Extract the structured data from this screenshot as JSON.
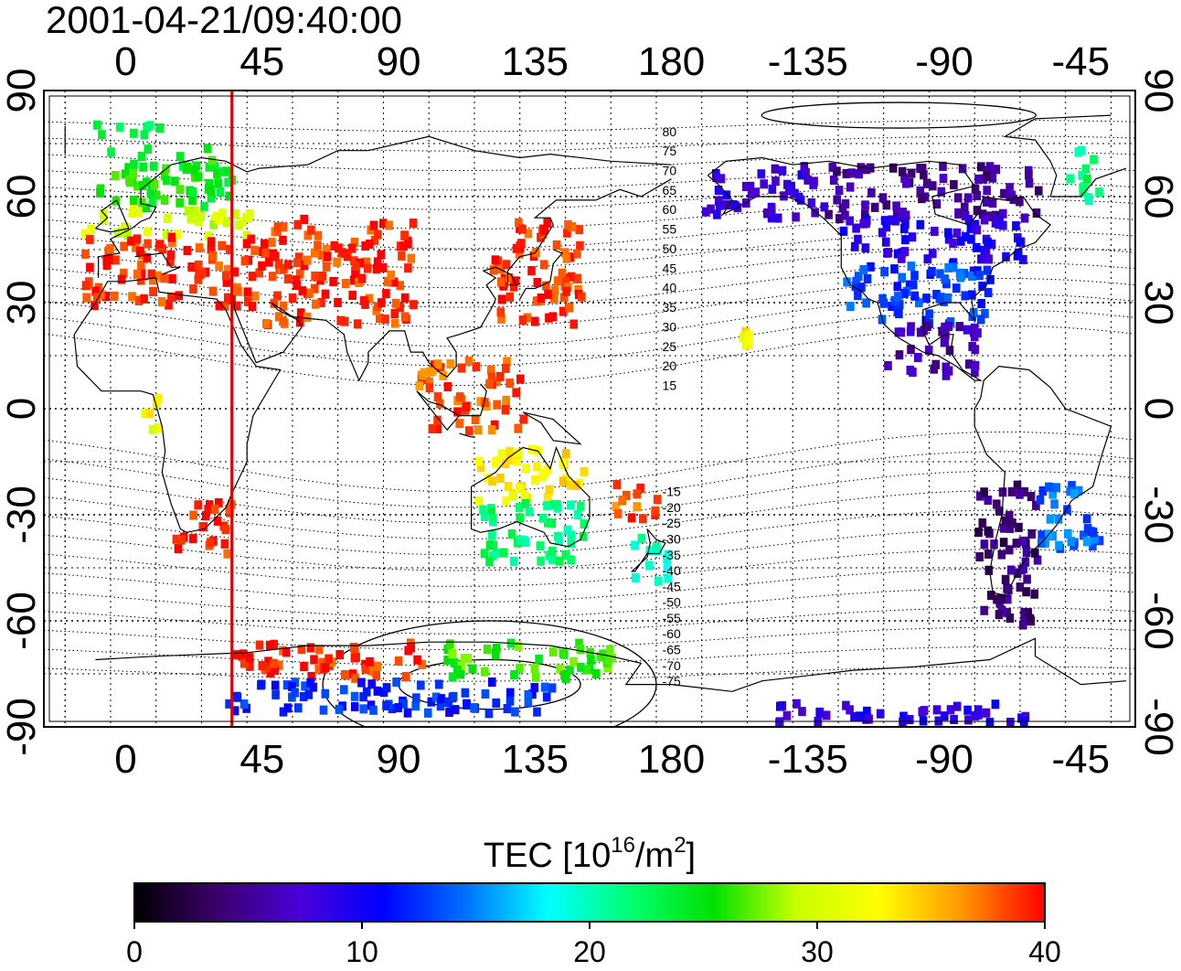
{
  "timestamp": "2001-04-21/09:40:00",
  "map": {
    "top_lon_ticks": [
      "0",
      "45",
      "90",
      "135",
      "180",
      "-135",
      "-90",
      "-45"
    ],
    "bottom_lon_ticks": [
      "0",
      "45",
      "90",
      "135",
      "180",
      "-135",
      "-90",
      "-45"
    ],
    "left_lat_ticks": [
      "90",
      "60",
      "30",
      "0",
      "-30",
      "-60",
      "-90"
    ],
    "right_lat_ticks": [
      "90",
      "60",
      "30",
      "0",
      "-30",
      "-60",
      "-90"
    ],
    "terminator_longitude": 35,
    "terminator_color": "#e00000",
    "north_contour_labels": [
      "80",
      "75",
      "70",
      "65",
      "60",
      "55",
      "50",
      "45",
      "40",
      "35",
      "30",
      "25",
      "20",
      "15"
    ],
    "south_contour_labels": [
      "-15",
      "-20",
      "-25",
      "-30",
      "-35",
      "-40",
      "-45",
      "-50",
      "-55",
      "-60",
      "-65",
      "-70",
      "-75"
    ]
  },
  "colorbar": {
    "title_main": "TEC  [10",
    "title_exp1": "16",
    "title_mid": "/m",
    "title_exp2": "2",
    "title_end": "]",
    "min": 0,
    "max": 40,
    "tick_labels": [
      "0",
      "10",
      "20",
      "30",
      "40"
    ],
    "stops": [
      "#000000",
      "#3c006c",
      "#4a00d8",
      "#0000ff",
      "#0070ff",
      "#00ffff",
      "#00ff70",
      "#00e000",
      "#c8ff00",
      "#ffff00",
      "#ff9600",
      "#ff0000"
    ]
  },
  "tec_regions": [
    {
      "name": "europe-high-north",
      "lon": [
        -15,
        10
      ],
      "lat": [
        78,
        82
      ],
      "tec": 23
    },
    {
      "name": "europe-northern",
      "lon": [
        -10,
        35
      ],
      "lat": [
        58,
        75
      ],
      "tec": 25
    },
    {
      "name": "europe-mid",
      "lon": [
        -15,
        40
      ],
      "lat": [
        50,
        58
      ],
      "tec": 30
    },
    {
      "name": "europe-south",
      "lon": [
        -15,
        45
      ],
      "lat": [
        30,
        50
      ],
      "tec": 39
    },
    {
      "name": "middle-east",
      "lon": [
        45,
        95
      ],
      "lat": [
        25,
        55
      ],
      "tec": 39
    },
    {
      "name": "east-asia",
      "lon": [
        120,
        150
      ],
      "lat": [
        25,
        55
      ],
      "tec": 39
    },
    {
      "name": "indonesia",
      "lon": [
        95,
        130
      ],
      "lat": [
        -5,
        15
      ],
      "tec": 38
    },
    {
      "name": "australia-north",
      "lon": [
        115,
        150
      ],
      "lat": [
        -25,
        -10
      ],
      "tec": 33
    },
    {
      "name": "australia-south",
      "lon": [
        115,
        150
      ],
      "lat": [
        -42,
        -25
      ],
      "tec": 22
    },
    {
      "name": "new-zealand",
      "lon": [
        165,
        178
      ],
      "lat": [
        -48,
        -35
      ],
      "tec": 20
    },
    {
      "name": "pacific-islands",
      "lon": [
        160,
        175
      ],
      "lat": [
        -30,
        -20
      ],
      "tec": 38
    },
    {
      "name": "hawaii",
      "lon": [
        -158,
        -154
      ],
      "lat": [
        18,
        25
      ],
      "tec": 33
    },
    {
      "name": "south-africa",
      "lon": [
        15,
        35
      ],
      "lat": [
        -40,
        -25
      ],
      "tec": 39
    },
    {
      "name": "west-africa",
      "lon": [
        5,
        10
      ],
      "lat": [
        -5,
        5
      ],
      "tec": 32
    },
    {
      "name": "alaska-canada-west",
      "lon": [
        -170,
        -130
      ],
      "lat": [
        55,
        70
      ],
      "tec": 8
    },
    {
      "name": "canada-east",
      "lon": [
        -130,
        -60
      ],
      "lat": [
        55,
        70
      ],
      "tec": 5
    },
    {
      "name": "usa-north",
      "lon": [
        -125,
        -65
      ],
      "lat": [
        42,
        55
      ],
      "tec": 9
    },
    {
      "name": "usa-south",
      "lon": [
        -125,
        -75
      ],
      "lat": [
        25,
        42
      ],
      "tec": 13
    },
    {
      "name": "mexico-caribbean",
      "lon": [
        -110,
        -80
      ],
      "lat": [
        10,
        25
      ],
      "tec": 6
    },
    {
      "name": "greenland-east",
      "lon": [
        -50,
        -40
      ],
      "lat": [
        60,
        75
      ],
      "tec": 22
    },
    {
      "name": "south-america-west",
      "lon": [
        -80,
        -60
      ],
      "lat": [
        -60,
        -20
      ],
      "tec": 4
    },
    {
      "name": "south-america-east",
      "lon": [
        -60,
        -40
      ],
      "lat": [
        -40,
        -20
      ],
      "tec": 14
    },
    {
      "name": "antarctic-coast-east",
      "lon": [
        35,
        100
      ],
      "lat": [
        -75,
        -65
      ],
      "tec": 39
    },
    {
      "name": "antarctic-coast-mid",
      "lon": [
        100,
        160
      ],
      "lat": [
        -75,
        -65
      ],
      "tec": 26
    },
    {
      "name": "antarctic-interior",
      "lon": [
        30,
        140
      ],
      "lat": [
        -85,
        -76
      ],
      "tec": 12
    },
    {
      "name": "antarctic-west",
      "lon": [
        -150,
        -60
      ],
      "lat": [
        -88,
        -82
      ],
      "tec": 9
    }
  ]
}
